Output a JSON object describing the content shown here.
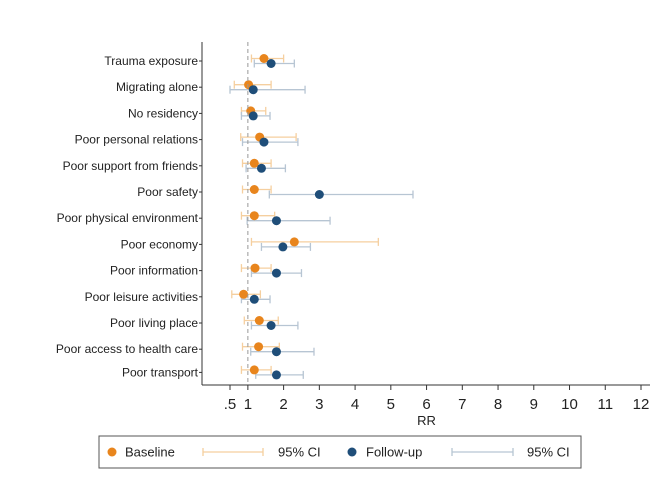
{
  "chart_data": {
    "type": "scatter",
    "xlabel": "RR",
    "xticks": [
      ".5",
      "1",
      "2",
      "3",
      "4",
      "5",
      "6",
      "7",
      "8",
      "9",
      "10",
      "11",
      "12"
    ],
    "xtick_values": [
      0.5,
      1,
      2,
      3,
      4,
      5,
      6,
      7,
      8,
      9,
      10,
      11,
      12
    ],
    "xlim": [
      0.4,
      12.1
    ],
    "reference_line": 1,
    "categories": [
      "Trauma exposure",
      "Migrating alone",
      "No residency",
      "Poor personal relations",
      "Poor support from friends",
      "Poor safety",
      "Poor physical environment",
      "Poor economy",
      "Poor information",
      "Poor leisure activities",
      "Poor living place",
      "Poor access to health care",
      "Poor transport"
    ],
    "series": [
      {
        "name": "Baseline",
        "color": "#e8851d",
        "ci_color": "#f5cf9f",
        "values": [
          1.45,
          1.02,
          1.08,
          1.33,
          1.18,
          1.18,
          1.18,
          2.3,
          1.2,
          0.88,
          1.32,
          1.3,
          1.18
        ],
        "ci_low": [
          1.1,
          0.62,
          0.82,
          0.8,
          0.85,
          0.85,
          0.82,
          1.1,
          0.82,
          0.55,
          0.9,
          0.85,
          0.82
        ],
        "ci_high": [
          2.0,
          1.65,
          1.5,
          2.35,
          1.65,
          1.65,
          1.75,
          4.65,
          1.65,
          1.35,
          1.85,
          1.88,
          1.65
        ]
      },
      {
        "name": "Follow-up",
        "color": "#1f4e79",
        "ci_color": "#b7c5d3",
        "values": [
          1.65,
          1.15,
          1.15,
          1.45,
          1.38,
          3.0,
          1.8,
          1.98,
          1.8,
          1.18,
          1.65,
          1.8,
          1.8
        ],
        "ci_low": [
          1.18,
          0.5,
          0.82,
          0.85,
          0.95,
          1.6,
          0.98,
          1.38,
          1.1,
          0.82,
          1.1,
          1.08,
          1.22
        ],
        "ci_high": [
          2.3,
          2.6,
          1.62,
          2.4,
          2.05,
          5.62,
          3.3,
          2.75,
          2.5,
          1.62,
          2.4,
          2.85,
          2.55
        ]
      }
    ],
    "legend": {
      "position": "bottom",
      "items": [
        "Baseline",
        "95% CI",
        "Follow-up",
        "95% CI"
      ]
    }
  }
}
